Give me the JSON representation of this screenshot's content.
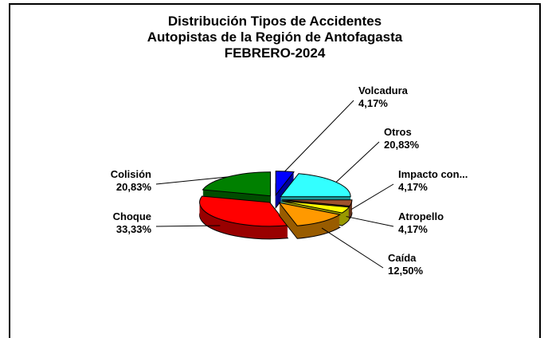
{
  "chart_data": {
    "type": "pie3d",
    "title": [
      "Distribución Tipos de Accidentes",
      "Autopistas de la Región de Antofagasta",
      "FEBRERO-2024"
    ],
    "categories": [
      "Volcadura",
      "Otros",
      "Impacto con...",
      "Atropello",
      "Caída",
      "Choque",
      "Colisión"
    ],
    "values": [
      4.17,
      20.83,
      4.17,
      4.17,
      12.5,
      33.33,
      20.83
    ],
    "value_labels": [
      "4,17%",
      "20,83%",
      "4,17%",
      "4,17%",
      "12,50%",
      "33,33%",
      "20,83%"
    ],
    "colors": [
      "#0000ff",
      "#33ffff",
      "#a0522d",
      "#ffff00",
      "#ff9900",
      "#ff0000",
      "#008000"
    ]
  }
}
